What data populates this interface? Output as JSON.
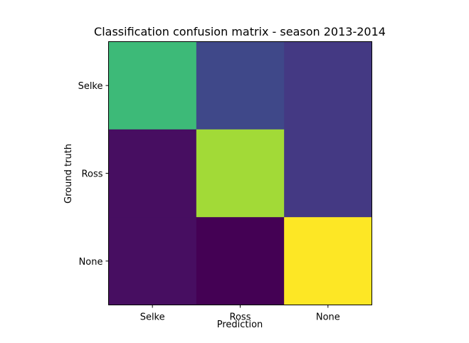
{
  "chart_data": {
    "type": "heatmap",
    "title": "Classification confusion matrix - season 2013-2014",
    "xlabel": "Prediction",
    "ylabel": "Ground truth",
    "x_categories": [
      "Selke",
      "Ross",
      "None"
    ],
    "y_categories": [
      "Selke",
      "Ross",
      "None"
    ],
    "colormap": "viridis",
    "values": [
      [
        0.62,
        0.23,
        0.17
      ],
      [
        0.04,
        0.86,
        0.17
      ],
      [
        0.04,
        0.0,
        1.0
      ]
    ],
    "colors": [
      [
        "#3dba78",
        "#3f4889",
        "#443983"
      ],
      [
        "#470e61",
        "#a2da37",
        "#443983"
      ],
      [
        "#470e61",
        "#440154",
        "#fde725"
      ]
    ]
  }
}
